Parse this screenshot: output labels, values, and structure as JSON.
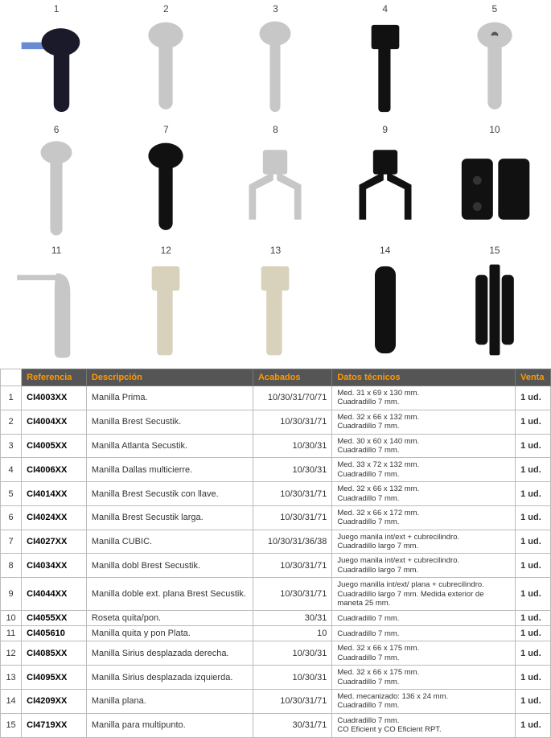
{
  "gallery_count": 15,
  "icons": {
    "1": "handle-dark-oval",
    "2": "handle-silver-oval",
    "3": "handle-silver-slim",
    "4": "handle-black-square",
    "5": "handle-silver-key",
    "6": "handle-silver-long",
    "7": "handle-black-oval",
    "8": "handle-double-silver",
    "9": "handle-double-black",
    "10": "rosette-black",
    "11": "handle-curve-silver",
    "12": "handle-square-nickel",
    "13": "handle-square-nickel",
    "14": "handle-flat-black",
    "15": "multipoint-black"
  },
  "header": {
    "ref": "Referencia",
    "desc": "Descripción",
    "acab": "Acabados",
    "datos": "Datos técnicos",
    "venta": "Venta"
  },
  "rows": [
    {
      "n": "1",
      "ref": "CI4003XX",
      "desc": "Manilla Prima.",
      "acab": "10/30/31/70/71",
      "datos": "Med. 31 x 69 x 130 mm.\nCuadradillo 7 mm.",
      "venta": "1 ud."
    },
    {
      "n": "2",
      "ref": "CI4004XX",
      "desc": "Manilla Brest Secustik.",
      "acab": "10/30/31/71",
      "datos": "Med. 32 x 66 x 132 mm.\nCuadradillo 7 mm.",
      "venta": "1 ud."
    },
    {
      "n": "3",
      "ref": "CI4005XX",
      "desc": "Manilla Atlanta Secustik.",
      "acab": "10/30/31",
      "datos": "Med. 30 x 60 x 140 mm.\nCuadradillo 7 mm.",
      "venta": "1 ud."
    },
    {
      "n": "4",
      "ref": "CI4006XX",
      "desc": "Manilla Dallas multicierre.",
      "acab": "10/30/31",
      "datos": "Med. 33 x 72 x 132 mm.\nCuadradillo 7 mm.",
      "venta": "1 ud."
    },
    {
      "n": "5",
      "ref": "CI4014XX",
      "desc": "Manilla Brest Secustik con llave.",
      "acab": "10/30/31/71",
      "datos": "Med. 32 x 66 x 132 mm.\nCuadradillo 7 mm.",
      "venta": "1 ud."
    },
    {
      "n": "6",
      "ref": "CI4024XX",
      "desc": "Manilla Brest Secustik larga.",
      "acab": "10/30/31/71",
      "datos": "Med. 32 x 66 x 172 mm.\nCuadradillo 7 mm.",
      "venta": "1 ud."
    },
    {
      "n": "7",
      "ref": "CI4027XX",
      "desc": "Manilla CUBIC.",
      "acab": "10/30/31/36/38",
      "datos": "Juego manila int/ext + cubrecilindro.\nCuadradillo largo 7 mm.",
      "venta": "1 ud."
    },
    {
      "n": "8",
      "ref": "CI4034XX",
      "desc": "Manilla dobl Brest Secustik.",
      "acab": "10/30/31/71",
      "datos": "Juego manila int/ext + cubrecilindro.\nCuadradillo largo 7 mm.",
      "venta": "1 ud."
    },
    {
      "n": "9",
      "ref": "CI4044XX",
      "desc": "Manilla doble ext. plana Brest Secustik.",
      "acab": "10/30/31/71",
      "datos": "Juego manilla int/ext/ plana + cubrecilindro.\nCuadradillo largo 7 mm. Medida exterior de maneta 25 mm.",
      "venta": "1 ud."
    },
    {
      "n": "10",
      "ref": "CI4055XX",
      "desc": "Roseta quita/pon.",
      "acab": "30/31",
      "datos": "Cuadradillo 7 mm.",
      "venta": "1 ud."
    },
    {
      "n": "11",
      "ref": "CI405610",
      "desc": "Manilla quita y pon Plata.",
      "acab": "10",
      "datos": "Cuadradillo 7 mm.",
      "venta": "1 ud."
    },
    {
      "n": "12",
      "ref": "CI4085XX",
      "desc": "Manilla Sirius desplazada derecha.",
      "acab": "10/30/31",
      "datos": "Med. 32 x 66 x 175 mm.\nCuadradillo 7 mm.",
      "venta": "1 ud."
    },
    {
      "n": "13",
      "ref": "CI4095XX",
      "desc": "Manilla Sirius desplazada izquierda.",
      "acab": "10/30/31",
      "datos": "Med. 32 x 66 x 175 mm.\nCuadradillo 7 mm.",
      "venta": "1 ud."
    },
    {
      "n": "14",
      "ref": "CI4209XX",
      "desc": "Manilla plana.",
      "acab": "10/30/31/71",
      "datos": "Med. mecanizado: 136 x 24 mm.\nCuadradillo 7 mm.",
      "venta": "1 ud."
    },
    {
      "n": "15",
      "ref": "CI4719XX",
      "desc": "Manilla para multipunto.",
      "acab": "30/31/71",
      "datos": "Cuadradillo 7 mm.\nCO Eficient y CO Eficient RPT.",
      "venta": "1 ud."
    }
  ]
}
